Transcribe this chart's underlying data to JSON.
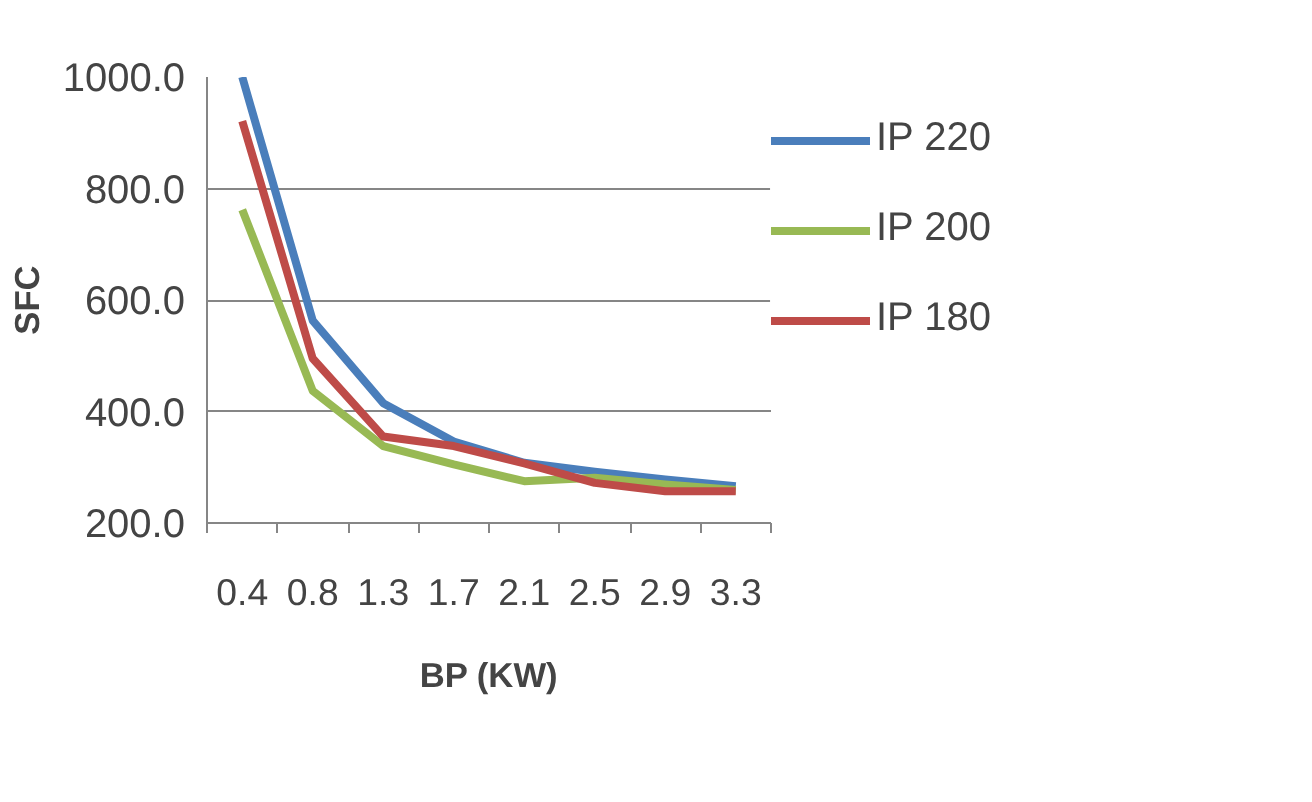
{
  "chart_data": {
    "type": "line",
    "xlabel": "BP (KW)",
    "ylabel": "SFC",
    "categories": [
      "0.4",
      "0.8",
      "1.3",
      "1.7",
      "2.1",
      "2.5",
      "2.9",
      "3.3"
    ],
    "series": [
      {
        "name": "IP 220",
        "color": "#4a7ebb",
        "values": [
          1000,
          563,
          415,
          346,
          308,
          292,
          278,
          266
        ]
      },
      {
        "name": "IP 200",
        "color": "#98b954",
        "values": [
          762,
          437,
          338,
          305,
          275,
          281,
          269,
          259
        ]
      },
      {
        "name": "IP 180",
        "color": "#be4b48",
        "values": [
          921,
          495,
          355,
          338,
          307,
          272,
          257,
          257
        ]
      }
    ],
    "ylim": [
      200,
      1000
    ],
    "yticks": [
      {
        "value": 200,
        "label": "200.0"
      },
      {
        "value": 400,
        "label": "400.0"
      },
      {
        "value": 600,
        "label": "600.0"
      },
      {
        "value": 800,
        "label": "800.0"
      },
      {
        "value": 1000,
        "label": "1000.0"
      }
    ],
    "grid": "y",
    "legend": "right",
    "marker": "none",
    "line_style": "solid"
  }
}
